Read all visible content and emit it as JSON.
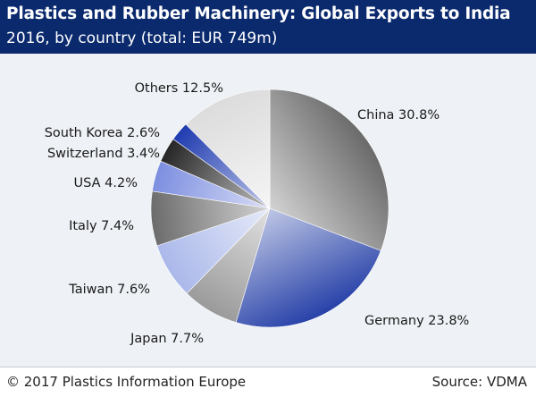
{
  "header": {
    "title": "Plastics and Rubber Machinery: Global Exports to India",
    "subtitle": "2016, by country (total: EUR 749m)"
  },
  "footer": {
    "copyright": "© 2017 Plastics Information Europe",
    "source": "Source: VDMA"
  },
  "chart_data": {
    "type": "pie",
    "title": "Plastics and Rubber Machinery: Global Exports to India",
    "subtitle": "2016, by country (total: EUR 749m)",
    "unit": "%",
    "slices": [
      {
        "label": "China",
        "value": 30.8,
        "display": "China 30.8%",
        "color": "#6a6a6a"
      },
      {
        "label": "Germany",
        "value": 23.8,
        "display": "Germany 23.8%",
        "color": "#2741a8"
      },
      {
        "label": "Japan",
        "value": 7.7,
        "display": "Japan 7.7%",
        "color": "#9a9a9a"
      },
      {
        "label": "Taiwan",
        "value": 7.6,
        "display": "Taiwan 7.6%",
        "color": "#aab8ea"
      },
      {
        "label": "Italy",
        "value": 7.4,
        "display": "Italy 7.4%",
        "color": "#6b6b6b"
      },
      {
        "label": "USA",
        "value": 4.2,
        "display": "USA 4.2%",
        "color": "#7c8ee0"
      },
      {
        "label": "Switzerland",
        "value": 3.4,
        "display": "Switzerland 3.4%",
        "color": "#262626"
      },
      {
        "label": "South Korea",
        "value": 2.6,
        "display": "South Korea 2.6%",
        "color": "#1f3bb0"
      },
      {
        "label": "Others",
        "value": 12.5,
        "display": "Others 12.5%",
        "color": "#dcdcdc"
      }
    ]
  }
}
